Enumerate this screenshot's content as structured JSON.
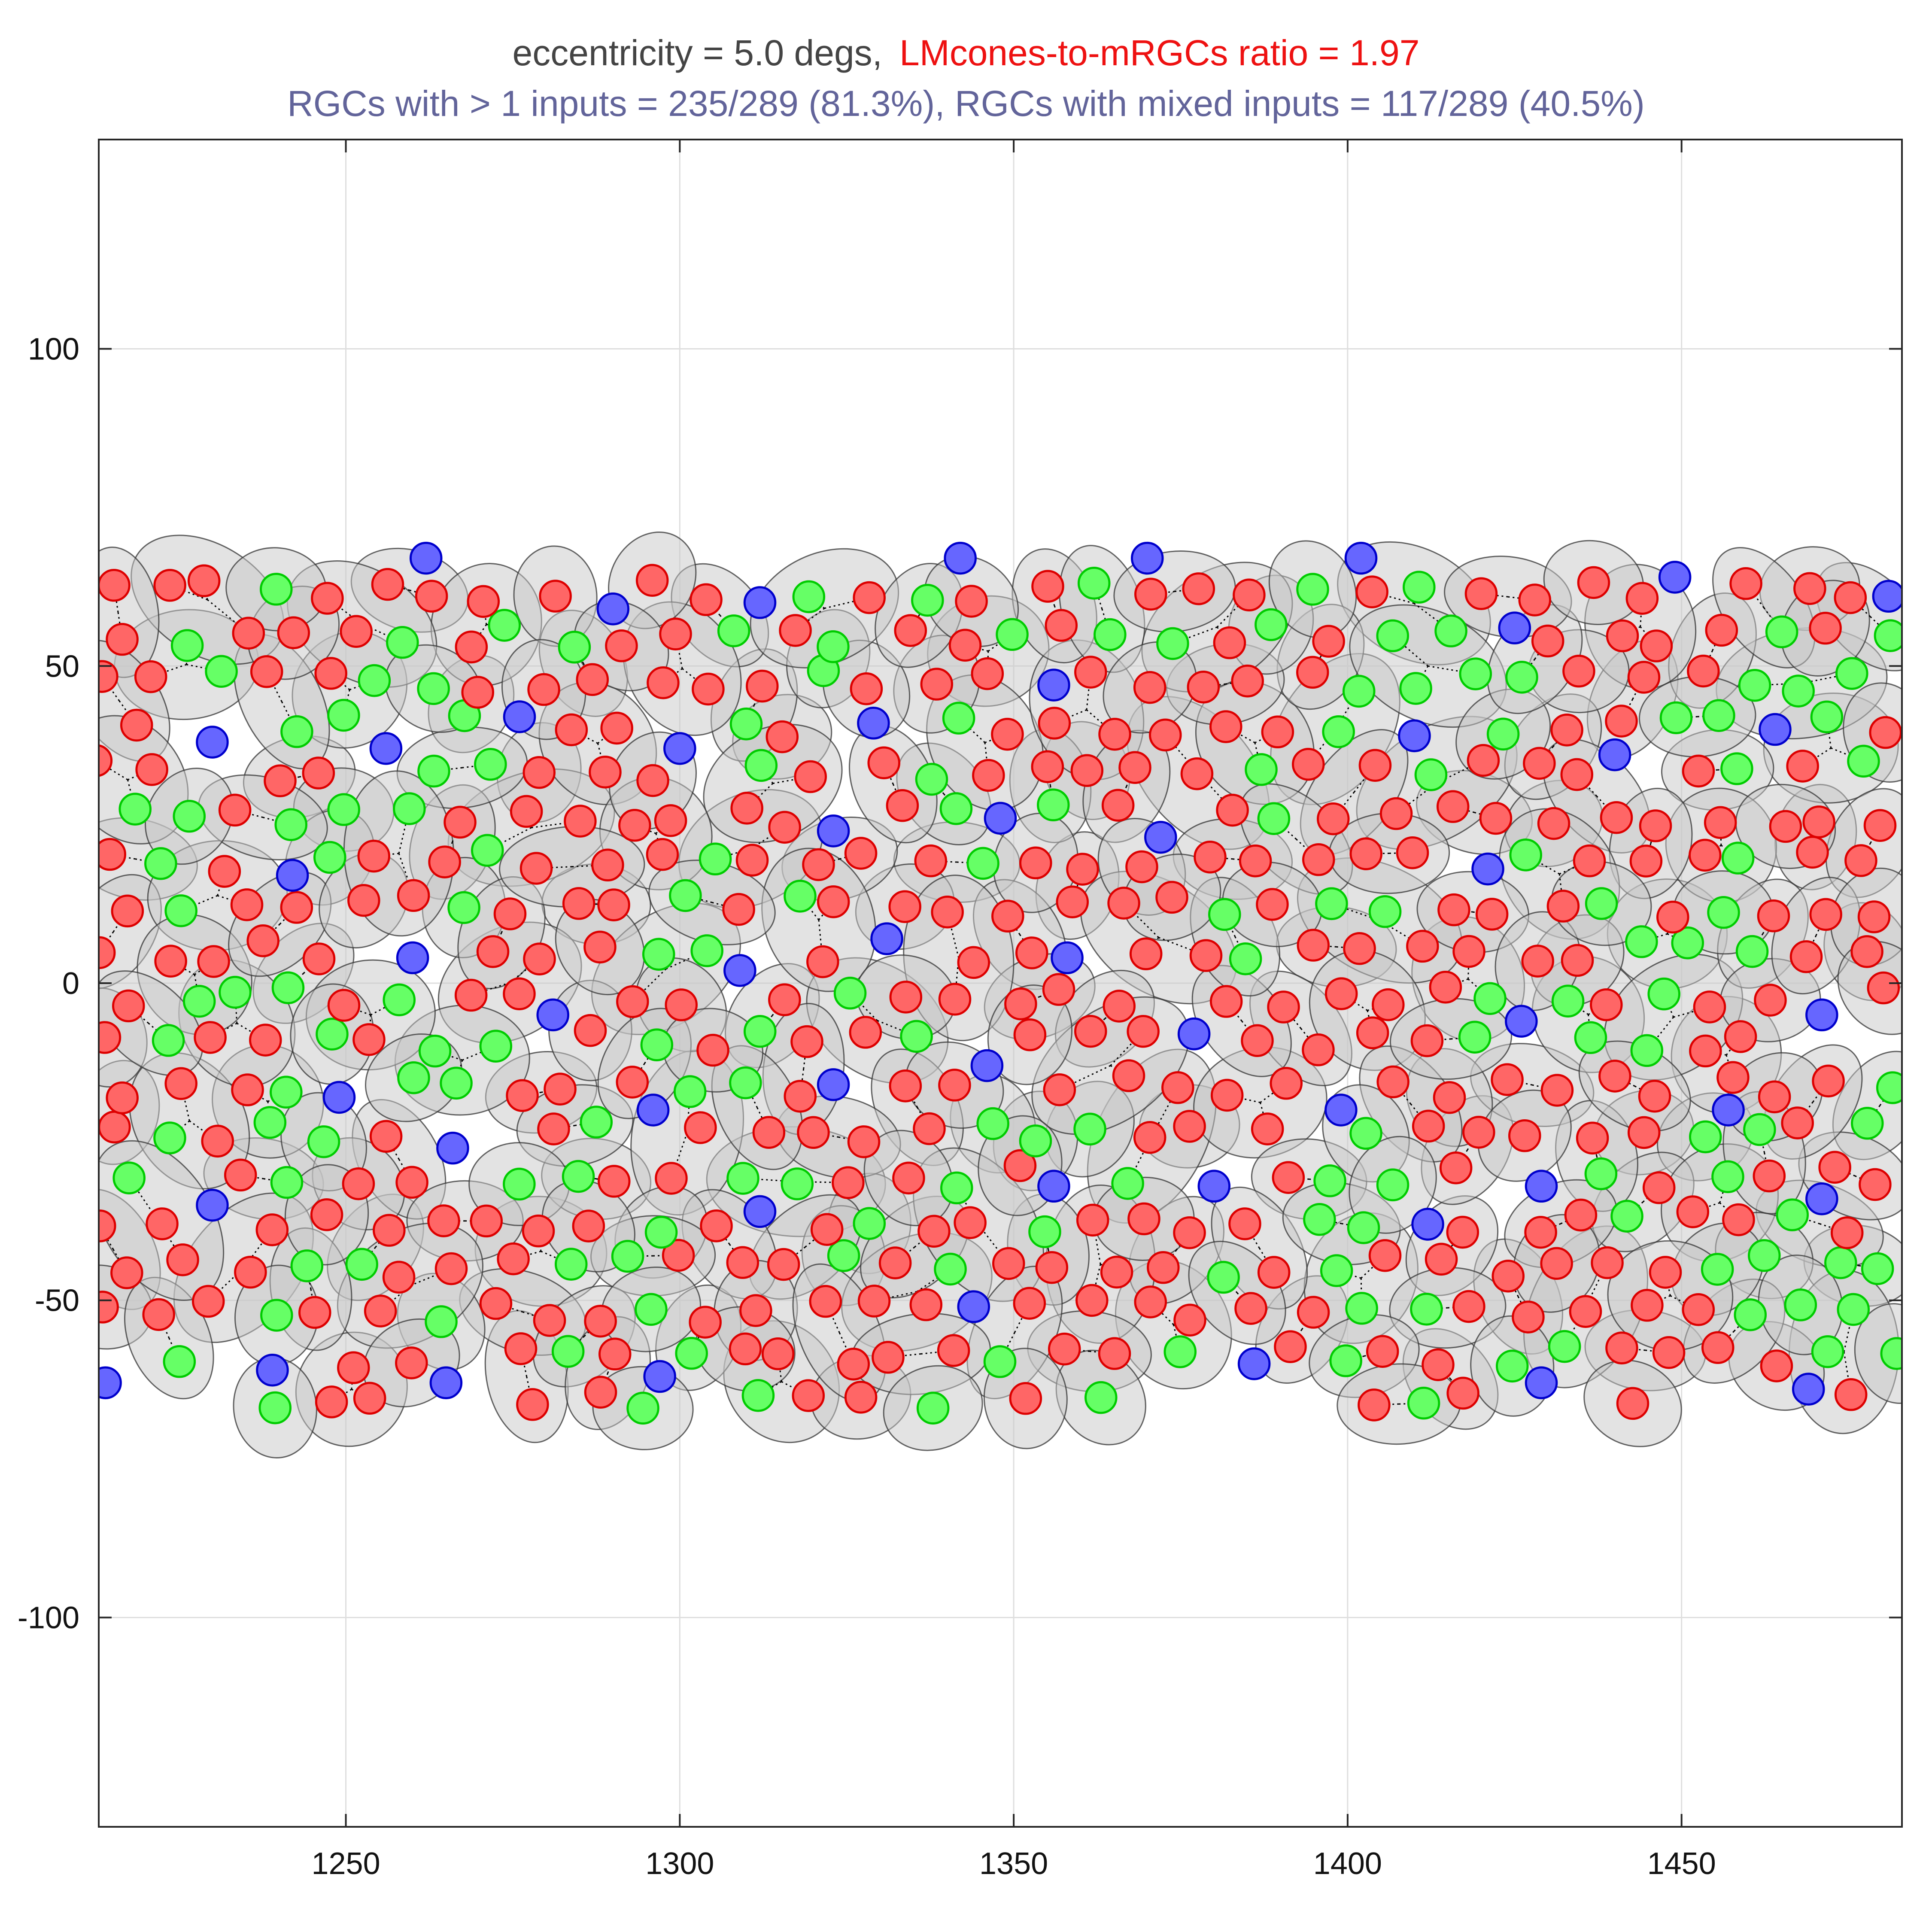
{
  "chart_data": {
    "type": "scatter",
    "title_line1_part1": "eccentricity = 5.0 degs,",
    "title_line1_part2": "LMcones-to-mRGCs ratio = 1.97",
    "title_line2": "RGCs with > 1 inputs = 235/289 (81.3%), RGCs with mixed inputs = 117/289 (40.5%)",
    "xlabel": "",
    "ylabel": "",
    "xlim": [
      1213,
      1483
    ],
    "ylim": [
      -133,
      133
    ],
    "xticks": [
      1250,
      1300,
      1350,
      1400,
      1450
    ],
    "yticks": [
      -100,
      -50,
      0,
      50,
      100
    ],
    "grid": true,
    "colors": {
      "title_main": "#444444",
      "title_ratio": "#ee1111",
      "title_stats": "#62649a",
      "L_cone": "#ff6666",
      "L_cone_edge": "#dd0000",
      "M_cone": "#66ff66",
      "M_cone_edge": "#00cc00",
      "S_cone": "#6666ff",
      "S_cone_edge": "#0000cc",
      "rgc_fill": "#c8c8c8",
      "rgc_edge": "#333333"
    },
    "s_cones": [
      [
        1214,
        -63
      ],
      [
        1230,
        38
      ],
      [
        1230,
        -35
      ],
      [
        1239,
        -61
      ],
      [
        1242,
        17
      ],
      [
        1249,
        -18
      ],
      [
        1256,
        37
      ],
      [
        1260,
        4
      ],
      [
        1262,
        67
      ],
      [
        1265,
        -63
      ],
      [
        1266,
        -26
      ],
      [
        1276,
        42
      ],
      [
        1281,
        -5
      ],
      [
        1290,
        59
      ],
      [
        1296,
        -20
      ],
      [
        1297,
        -62
      ],
      [
        1300,
        37
      ],
      [
        1309,
        2
      ],
      [
        1312,
        60
      ],
      [
        1312,
        -36
      ],
      [
        1323,
        24
      ],
      [
        1323,
        -16
      ],
      [
        1329,
        41
      ],
      [
        1331,
        7
      ],
      [
        1342,
        67
      ],
      [
        1344,
        -51
      ],
      [
        1346,
        -13
      ],
      [
        1348,
        26
      ],
      [
        1356,
        47
      ],
      [
        1356,
        -32
      ],
      [
        1358,
        4
      ],
      [
        1370,
        67
      ],
      [
        1372,
        23
      ],
      [
        1377,
        -8
      ],
      [
        1380,
        -32
      ],
      [
        1386,
        -60
      ],
      [
        1399,
        -20
      ],
      [
        1402,
        67
      ],
      [
        1410,
        39
      ],
      [
        1412,
        -38
      ],
      [
        1421,
        18
      ],
      [
        1425,
        56
      ],
      [
        1426,
        -6
      ],
      [
        1429,
        -32
      ],
      [
        1429,
        -63
      ],
      [
        1440,
        36
      ],
      [
        1449,
        64
      ],
      [
        1457,
        -20
      ],
      [
        1464,
        40
      ],
      [
        1469,
        -64
      ],
      [
        1471,
        -34
      ],
      [
        1471,
        -5
      ],
      [
        1481,
        61
      ]
    ],
    "rgc_count_total": 289,
    "rgc_multi_input": 235,
    "rgc_mixed_input": 117
  }
}
